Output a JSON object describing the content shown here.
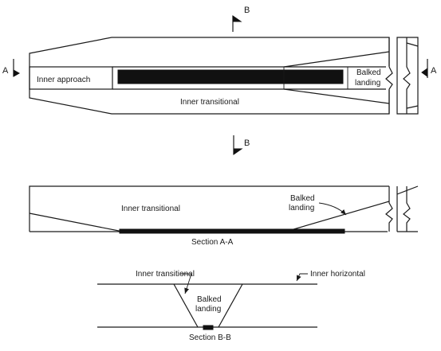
{
  "plan_view": {
    "labels": {
      "inner_approach": "Inner approach",
      "inner_transitional": "Inner transitional",
      "balked_landing_line1": "Balked",
      "balked_landing_line2": "landing"
    },
    "section_marks": {
      "a_left": "A",
      "a_right": "A",
      "b_top": "B",
      "b_bottom": "B"
    }
  },
  "section_aa": {
    "inner_transitional": "Inner transitional",
    "balked_landing_line1": "Balked",
    "balked_landing_line2": "landing",
    "caption": "Section A-A"
  },
  "section_bb": {
    "inner_transitional": "Inner transitional",
    "inner_horizontal": "Inner horizontal",
    "balked_landing_line1": "Balked",
    "balked_landing_line2": "landing",
    "caption": "Section B-B"
  }
}
